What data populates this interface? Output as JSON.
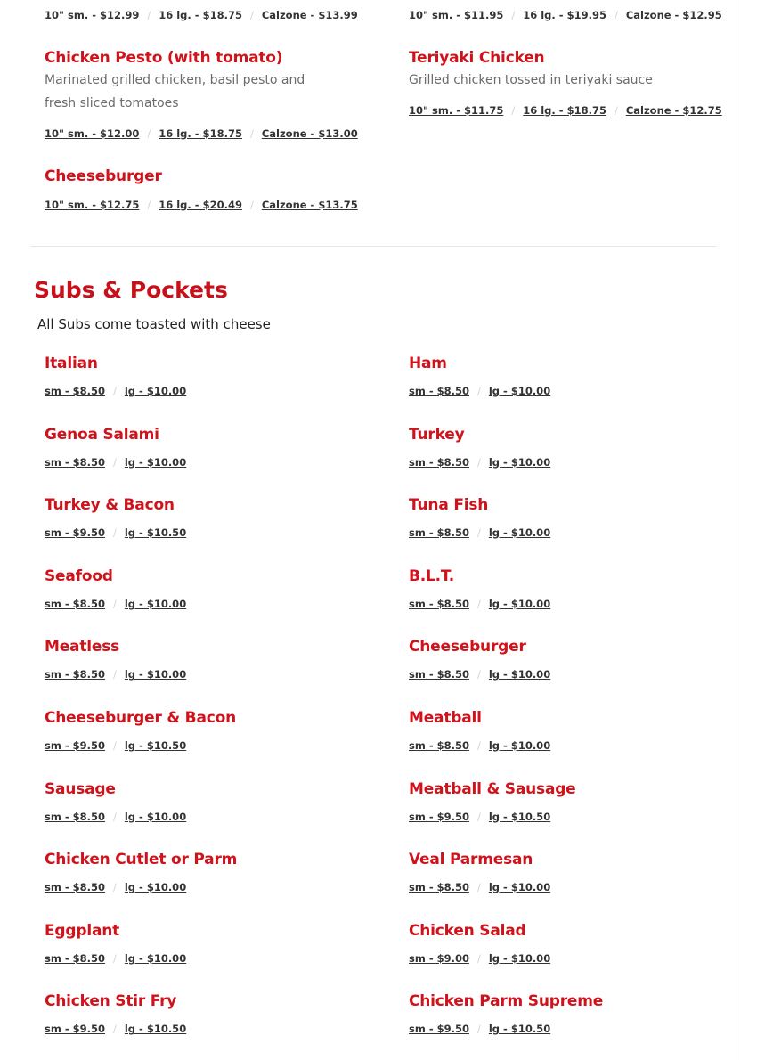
{
  "top_items": {
    "left": [
      {
        "name": "",
        "description": "",
        "prices": [
          "10\" sm. - $12.99",
          "16 lg. - $18.75",
          "Calzone - $13.99"
        ]
      },
      {
        "name": "Chicken Pesto (with tomato)",
        "description": "Marinated grilled chicken, basil pesto and fresh sliced tomatoes",
        "prices": [
          "10\" sm. - $12.00",
          "16 lg. - $18.75",
          "Calzone - $13.00"
        ]
      },
      {
        "name": "Cheeseburger",
        "description": "",
        "prices": [
          "10\" sm. - $12.75",
          "16 lg. - $20.49",
          "Calzone - $13.75"
        ]
      }
    ],
    "right": [
      {
        "name": "",
        "description": "",
        "prices": [
          "10\" sm. - $11.95",
          "16 lg. - $19.95",
          "Calzone - $12.95"
        ]
      },
      {
        "name": "Teriyaki Chicken",
        "description": "Grilled chicken tossed in teriyaki sauce",
        "prices": [
          "10\" sm. - $11.75",
          "16 lg. - $18.75",
          "Calzone - $12.75"
        ]
      }
    ]
  },
  "subs": {
    "title": "Subs & Pockets",
    "subtitle": "All Subs come toasted with cheese",
    "left": [
      {
        "name": "Italian",
        "prices": [
          "sm - $8.50",
          "lg - $10.00"
        ]
      },
      {
        "name": "Genoa Salami",
        "prices": [
          "sm - $8.50",
          "lg - $10.00"
        ]
      },
      {
        "name": "Turkey & Bacon",
        "prices": [
          "sm - $9.50",
          "lg - $10.50"
        ]
      },
      {
        "name": "Seafood",
        "prices": [
          "sm - $8.50",
          "lg - $10.00"
        ]
      },
      {
        "name": "Meatless",
        "prices": [
          "sm - $8.50",
          "lg - $10.00"
        ]
      },
      {
        "name": "Cheeseburger & Bacon",
        "prices": [
          "sm - $9.50",
          "lg - $10.50"
        ]
      },
      {
        "name": "Sausage",
        "prices": [
          "sm - $8.50",
          "lg - $10.00"
        ]
      },
      {
        "name": "Chicken Cutlet or Parm",
        "prices": [
          "sm - $8.50",
          "lg - $10.00"
        ]
      },
      {
        "name": "Eggplant",
        "prices": [
          "sm - $8.50",
          "lg - $10.00"
        ]
      },
      {
        "name": "Chicken Stir Fry",
        "prices": [
          "sm - $9.50",
          "lg - $10.50"
        ]
      }
    ],
    "right": [
      {
        "name": "Ham",
        "prices": [
          "sm - $8.50",
          "lg - $10.00"
        ]
      },
      {
        "name": "Turkey",
        "prices": [
          "sm - $8.50",
          "lg - $10.00"
        ]
      },
      {
        "name": "Tuna Fish",
        "prices": [
          "sm - $8.50",
          "lg - $10.00"
        ]
      },
      {
        "name": "B.L.T.",
        "prices": [
          "sm - $8.50",
          "lg - $10.00"
        ]
      },
      {
        "name": "Cheeseburger",
        "prices": [
          "sm - $8.50",
          "lg - $10.00"
        ]
      },
      {
        "name": "Meatball",
        "prices": [
          "sm - $8.50",
          "lg - $10.00"
        ]
      },
      {
        "name": "Meatball & Sausage",
        "prices": [
          "sm - $9.50",
          "lg - $10.50"
        ]
      },
      {
        "name": "Veal Parmesan",
        "prices": [
          "sm - $8.50",
          "lg - $10.00"
        ]
      },
      {
        "name": "Chicken Salad",
        "prices": [
          "sm - $9.00",
          "lg - $10.00"
        ]
      },
      {
        "name": "Chicken Parm Supreme",
        "prices": [
          "sm - $9.50",
          "lg - $10.50"
        ]
      }
    ]
  },
  "colors": {
    "accent": "#d0121b",
    "price_text": "#333333",
    "description": "#6b6b6b"
  },
  "separator": "/"
}
